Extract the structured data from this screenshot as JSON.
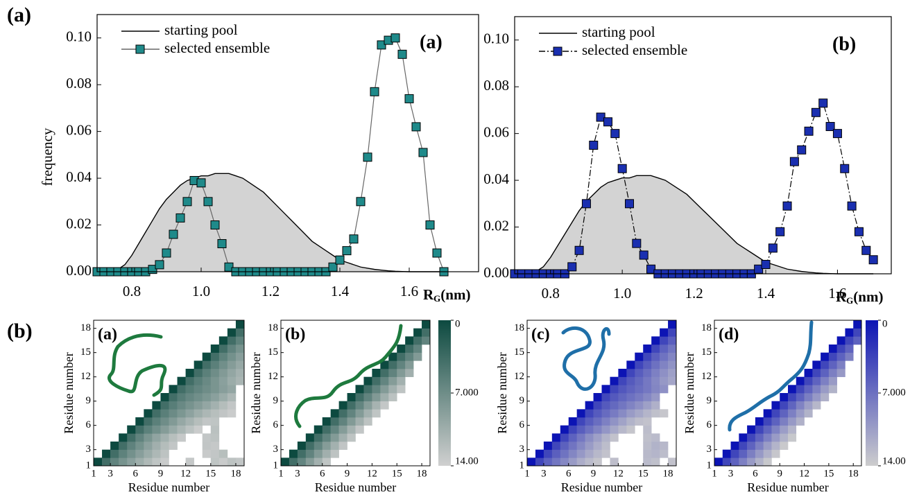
{
  "figure_labels": [
    "(a)",
    "(b)"
  ],
  "chart_data": [
    {
      "type": "line",
      "panel_label": "(a)",
      "ylabel": "frequency",
      "xlabel_main": "R",
      "xlabel_sub": "G",
      "xlabel_unit": "(nm)",
      "legend": "upper left",
      "xlim": [
        0.7,
        1.8
      ],
      "ylim": [
        0,
        0.11
      ],
      "xticks": [
        0.8,
        {
          "value": 1.0,
          "label": "1.0"
        },
        1.2,
        1.4,
        1.6
      ],
      "yticks": [
        {
          "value": 0,
          "label": "0.00"
        },
        0.02,
        0.04,
        0.06,
        0.08,
        {
          "value": 0.1,
          "label": "0.10"
        }
      ],
      "x": [
        0.7,
        0.72,
        0.74,
        0.76,
        0.78,
        0.8,
        0.82,
        0.84,
        0.86,
        0.88,
        0.9,
        0.92,
        0.94,
        0.96,
        0.98,
        1.0,
        1.02,
        1.04,
        1.06,
        1.08,
        1.1,
        1.12,
        1.14,
        1.16,
        1.18,
        1.2,
        1.22,
        1.24,
        1.26,
        1.28,
        1.3,
        1.32,
        1.34,
        1.36,
        1.38,
        1.4,
        1.42,
        1.44,
        1.46,
        1.48,
        1.5,
        1.52,
        1.54,
        1.56,
        1.58,
        1.6,
        1.62,
        1.64,
        1.66,
        1.68,
        1.7
      ],
      "series": [
        {
          "name": "starting pool",
          "color": "#000000",
          "fill": "#d3d3d3",
          "values": [
            0,
            0,
            0,
            0.001,
            0.003,
            0.007,
            0.012,
            0.017,
            0.022,
            0.027,
            0.031,
            0.034,
            0.037,
            0.039,
            0.04,
            0.041,
            0.041,
            0.042,
            0.042,
            0.042,
            0.041,
            0.04,
            0.038,
            0.036,
            0.034,
            0.031,
            0.028,
            0.025,
            0.022,
            0.019,
            0.016,
            0.013,
            0.011,
            0.009,
            0.007,
            0.005,
            0.004,
            0.003,
            0.002,
            0.0015,
            0.001,
            0.0007,
            0.0004,
            0.0002,
            0.0001,
            0,
            0,
            0,
            0,
            0,
            0
          ]
        },
        {
          "name": "selected ensemble",
          "color": "#1f8a8a",
          "line_color": "#666666",
          "marker": "square",
          "values": [
            0,
            0,
            0,
            0,
            0,
            0,
            0,
            0,
            0.001,
            0.003,
            0.008,
            0.016,
            0.023,
            0.03,
            0.039,
            0.038,
            0.03,
            0.02,
            0.012,
            0.002,
            0,
            0,
            0,
            0,
            0,
            0,
            0,
            0,
            0,
            0,
            0,
            0,
            0,
            0,
            0.002,
            0.005,
            0.009,
            0.014,
            0.03,
            0.049,
            0.077,
            0.097,
            0.099,
            0.1,
            0.093,
            0.074,
            0.062,
            0.051,
            0.02,
            0.008,
            0
          ]
        }
      ]
    },
    {
      "type": "line",
      "panel_label": "(b)",
      "xlabel_main": "R",
      "xlabel_sub": "G",
      "xlabel_unit": "(nm)",
      "legend": "upper left",
      "xlim": [
        0.7,
        1.75
      ],
      "ylim": [
        0,
        0.11
      ],
      "xticks": [
        0.8,
        {
          "value": 1.0,
          "label": "1.0"
        },
        1.2,
        1.4,
        1.6
      ],
      "yticks": [
        {
          "value": 0,
          "label": "0.00"
        },
        0.02,
        0.04,
        0.06,
        0.08,
        {
          "value": 0.1,
          "label": "0.10"
        }
      ],
      "x": [
        0.7,
        0.72,
        0.74,
        0.76,
        0.78,
        0.8,
        0.82,
        0.84,
        0.86,
        0.88,
        0.9,
        0.92,
        0.94,
        0.96,
        0.98,
        1.0,
        1.02,
        1.04,
        1.06,
        1.08,
        1.1,
        1.12,
        1.14,
        1.16,
        1.18,
        1.2,
        1.22,
        1.24,
        1.26,
        1.28,
        1.3,
        1.32,
        1.34,
        1.36,
        1.38,
        1.4,
        1.42,
        1.44,
        1.46,
        1.48,
        1.5,
        1.52,
        1.54,
        1.56,
        1.58,
        1.6,
        1.62,
        1.64,
        1.66,
        1.68,
        1.7
      ],
      "series": [
        {
          "name": "starting pool",
          "color": "#000000",
          "fill": "#d3d3d3",
          "values": [
            0,
            0,
            0,
            0.001,
            0.003,
            0.007,
            0.012,
            0.017,
            0.022,
            0.027,
            0.031,
            0.034,
            0.037,
            0.039,
            0.04,
            0.041,
            0.041,
            0.042,
            0.042,
            0.042,
            0.041,
            0.04,
            0.038,
            0.036,
            0.034,
            0.031,
            0.028,
            0.025,
            0.022,
            0.019,
            0.016,
            0.013,
            0.011,
            0.009,
            0.007,
            0.005,
            0.004,
            0.003,
            0.002,
            0.0015,
            0.001,
            0.0007,
            0.0004,
            0.0002,
            0.0001,
            0,
            0,
            0,
            0,
            0,
            0
          ]
        },
        {
          "name": "selected ensemble",
          "color": "#1a2fb0",
          "line_color": "#000000",
          "line_style": "dashdot",
          "marker": "square",
          "values": [
            0,
            0,
            0,
            0,
            0,
            0,
            0,
            0,
            0.003,
            0.01,
            0.03,
            0.055,
            0.067,
            0.065,
            0.06,
            0.045,
            0.03,
            0.013,
            0.008,
            0.002,
            0,
            0,
            0,
            0,
            0,
            0,
            0,
            0,
            0,
            0,
            0,
            0,
            0,
            0,
            0.002,
            0.004,
            0.011,
            0.018,
            0.029,
            0.048,
            0.053,
            0.061,
            0.069,
            0.073,
            0.063,
            0.06,
            0.045,
            0.029,
            0.018,
            0.01,
            0.006
          ]
        }
      ]
    },
    {
      "type": "heatmap",
      "panel_label": "(a)",
      "xlabel": "Residue number",
      "ylabel": "Residue number",
      "xlim": [
        1,
        19
      ],
      "ylim": [
        1,
        19
      ],
      "xticks": [
        1,
        3,
        6,
        9,
        12,
        15,
        18
      ],
      "yticks": [
        1,
        3,
        6,
        9,
        12,
        15,
        18
      ],
      "colors": [
        "#0d4a40",
        "#d0d0d0"
      ],
      "clim": [
        0,
        14
      ],
      "rows": [
        [
          0,
          3.8,
          6.0,
          7.6,
          9.0,
          10.4,
          11.6,
          12.8,
          13.5,
          null,
          null,
          13.2,
          null,
          null,
          12.8,
          13.5,
          12.6,
          13.0
        ],
        [
          0,
          3.8,
          5.8,
          7.4,
          8.8,
          10.2,
          11.5,
          12.6,
          null,
          null,
          null,
          null,
          13.4,
          13.0,
          12.2
        ],
        [
          0,
          3.8,
          5.9,
          7.5,
          9.1,
          10.6,
          12.0,
          13.0,
          null,
          null,
          null,
          12.9,
          13.2
        ],
        [
          0,
          3.8,
          6.0,
          7.8,
          9.4,
          10.8,
          12.2,
          13.3,
          null,
          null,
          13.0,
          12.6
        ],
        [
          0,
          3.8,
          5.7,
          7.2,
          8.6,
          10.0,
          11.3,
          12.5,
          13.6,
          null,
          12.4
        ],
        [
          0,
          3.8,
          5.6,
          7.0,
          8.4,
          9.8,
          11.0,
          12.1,
          13.0,
          12.8
        ],
        [
          0,
          3.8,
          5.5,
          6.8,
          8.0,
          9.2,
          10.4,
          11.4,
          12.2,
          12.9,
          13.6
        ],
        [
          0,
          3.8,
          5.4,
          6.6,
          7.6,
          8.6,
          9.6,
          10.8,
          12.0,
          13.0
        ],
        [
          0,
          3.8,
          5.3,
          6.4,
          7.2,
          8.0,
          9.0,
          10.2,
          11.4
        ],
        [
          0,
          3.8,
          5.2,
          6.2,
          7.0,
          7.8,
          8.8,
          9.6
        ],
        [
          0,
          3.8,
          5.4,
          6.6,
          7.8,
          9.0,
          10.2,
          11.2
        ],
        [
          0,
          3.8,
          5.6,
          7.0,
          8.4,
          9.6,
          10.8
        ],
        [
          0,
          3.8,
          5.6,
          7.2,
          8.6,
          9.8
        ],
        [
          0,
          3.8,
          5.8,
          7.4,
          8.8
        ],
        [
          0,
          3.8,
          6.0,
          7.6
        ],
        [
          0,
          3.8,
          5.8
        ],
        [
          0,
          3.8
        ],
        [
          0
        ]
      ]
    },
    {
      "type": "heatmap",
      "panel_label": "(b)",
      "xlabel": "Residue number",
      "ylabel": "Residue number",
      "xlim": [
        1,
        19
      ],
      "ylim": [
        1,
        19
      ],
      "xticks": [
        1,
        3,
        6,
        9,
        12,
        15,
        18
      ],
      "yticks": [
        1,
        3,
        6,
        9,
        12,
        15,
        18
      ],
      "colors": [
        "#0d4a40",
        "#d0d0d0"
      ],
      "clim": [
        0,
        14
      ],
      "colorbar_ticks": [
        0,
        {
          "value": 7,
          "label": "7.000"
        },
        {
          "value": 14,
          "label": "14.00"
        }
      ],
      "rows": [
        [
          0,
          3.8,
          6.2,
          8.6,
          10.8,
          12.8
        ],
        [
          0,
          3.8,
          6.0,
          8.4,
          10.6,
          12.6
        ],
        [
          0,
          3.8,
          6.2,
          8.6,
          10.8,
          12.9
        ],
        [
          0,
          3.8,
          6.1,
          8.5,
          10.7,
          12.7
        ],
        [
          0,
          3.8,
          6.2,
          8.6,
          10.9,
          13.0
        ],
        [
          0,
          3.8,
          6.0,
          8.4,
          10.6,
          12.6
        ],
        [
          0,
          3.8,
          6.1,
          8.5,
          10.8,
          12.8
        ],
        [
          0,
          3.8,
          6.2,
          8.7,
          11.0,
          13.1
        ],
        [
          0,
          3.8,
          6.0,
          8.3,
          10.5,
          12.5
        ],
        [
          0,
          3.8,
          6.1,
          8.5,
          10.7,
          12.7
        ],
        [
          0,
          3.8,
          6.2,
          8.6,
          10.8
        ],
        [
          0,
          3.8,
          6.0,
          8.4,
          10.6
        ],
        [
          0,
          3.8,
          6.1,
          8.5
        ],
        [
          0,
          3.8,
          6.0,
          8.4
        ],
        [
          0,
          3.8,
          6.1
        ],
        [
          0,
          3.8,
          6.0
        ],
        [
          0,
          3.8
        ],
        [
          0
        ]
      ]
    },
    {
      "type": "heatmap",
      "panel_label": "(c)",
      "xlabel": "Residue number",
      "ylabel": "Residue number",
      "xlim": [
        1,
        19
      ],
      "ylim": [
        1,
        19
      ],
      "xticks": [
        1,
        3,
        6,
        9,
        12,
        15,
        18
      ],
      "yticks": [
        1,
        3,
        6,
        9,
        12,
        15,
        18
      ],
      "colors": [
        "#0c14b4",
        "#cdcdcd"
      ],
      "clim": [
        0,
        14
      ],
      "rows": [
        [
          0,
          3.8,
          5.9,
          7.4,
          8.8,
          10.2,
          11.6,
          12.6,
          13.4,
          null,
          12.9,
          null,
          null,
          null,
          12.6,
          13.0,
          null,
          13.2
        ],
        [
          0,
          3.8,
          5.7,
          7.2,
          8.6,
          10.0,
          11.3,
          12.4,
          13.2,
          null,
          null,
          null,
          null,
          12.5,
          12.2,
          12.8
        ],
        [
          0,
          3.8,
          5.8,
          7.3,
          8.8,
          10.2,
          11.6,
          12.8,
          null,
          null,
          null,
          null,
          12.8,
          12.0,
          12.4
        ],
        [
          0,
          3.8,
          5.9,
          7.6,
          9.2,
          10.6,
          12.0,
          13.2,
          null,
          null,
          null,
          13.0,
          12.6
        ],
        [
          0,
          3.8,
          5.6,
          7.0,
          8.4,
          9.8,
          11.2,
          12.4,
          13.4,
          null,
          12.8
        ],
        [
          0,
          3.8,
          5.5,
          6.8,
          8.2,
          9.6,
          10.8,
          12.0,
          12.9,
          13.2
        ],
        [
          0,
          3.8,
          5.4,
          6.6,
          7.8,
          9.0,
          10.2,
          11.2,
          12.2,
          13.0,
          13.5
        ],
        [
          0,
          3.8,
          5.3,
          6.4,
          7.4,
          8.4,
          9.4,
          10.6,
          11.8
        ],
        [
          0,
          3.8,
          5.2,
          6.2,
          7.0,
          7.8,
          8.8,
          10.0
        ],
        [
          0,
          3.8,
          5.1,
          6.0,
          6.8,
          7.6,
          8.6,
          9.4
        ],
        [
          0,
          3.8,
          5.3,
          6.4,
          7.6,
          8.8,
          10.0,
          11.0
        ],
        [
          0,
          3.8,
          5.5,
          6.8,
          8.2,
          9.4,
          10.6
        ],
        [
          0,
          3.8,
          5.5,
          7.0,
          8.4,
          9.6
        ],
        [
          0,
          3.8,
          5.7,
          7.2,
          8.6
        ],
        [
          0,
          3.8,
          5.9,
          7.4
        ],
        [
          0,
          3.8,
          5.7
        ],
        [
          0,
          3.8
        ],
        [
          0
        ]
      ]
    },
    {
      "type": "heatmap",
      "panel_label": "(d)",
      "xlabel": "Residue number",
      "ylabel": "Residue number",
      "xlim": [
        1,
        19
      ],
      "ylim": [
        1,
        19
      ],
      "xticks": [
        1,
        3,
        6,
        9,
        12,
        15,
        18
      ],
      "yticks": [
        1,
        3,
        6,
        9,
        12,
        15,
        18
      ],
      "colors": [
        "#0c14b4",
        "#cdcdcd"
      ],
      "clim": [
        0,
        14
      ],
      "colorbar_ticks": [
        0,
        {
          "value": 7,
          "label": "7.000"
        },
        {
          "value": 14,
          "label": "14.00"
        }
      ],
      "rows": [
        [
          0,
          3.8,
          6.0,
          8.2,
          10.2,
          12.0,
          13.6
        ],
        [
          0,
          3.8,
          5.9,
          8.1,
          10.1,
          11.9,
          13.5
        ],
        [
          0,
          3.8,
          6.0,
          8.2,
          10.3,
          12.1,
          13.7
        ],
        [
          0,
          3.8,
          6.0,
          8.2,
          10.2,
          12.0,
          13.6
        ],
        [
          0,
          3.8,
          6.1,
          8.3,
          10.4,
          12.2
        ],
        [
          0,
          3.8,
          5.9,
          8.1,
          10.1,
          11.9
        ],
        [
          0,
          3.8,
          6.0,
          8.2,
          10.2,
          12.0
        ],
        [
          0,
          3.8,
          6.1,
          8.4,
          10.5,
          12.3
        ],
        [
          0,
          3.8,
          5.9,
          8.0,
          10.0,
          11.8
        ],
        [
          0,
          3.8,
          6.0,
          8.2,
          10.2,
          12.0
        ],
        [
          0,
          3.8,
          6.0,
          8.2,
          10.2
        ],
        [
          0,
          3.8,
          5.9,
          8.1,
          10.1
        ],
        [
          0,
          3.8,
          6.0,
          8.2
        ],
        [
          0,
          3.8,
          5.9,
          8.1
        ],
        [
          0,
          3.8,
          6.0
        ],
        [
          0,
          3.8,
          5.9
        ],
        [
          0,
          3.8
        ],
        [
          0
        ]
      ]
    }
  ]
}
